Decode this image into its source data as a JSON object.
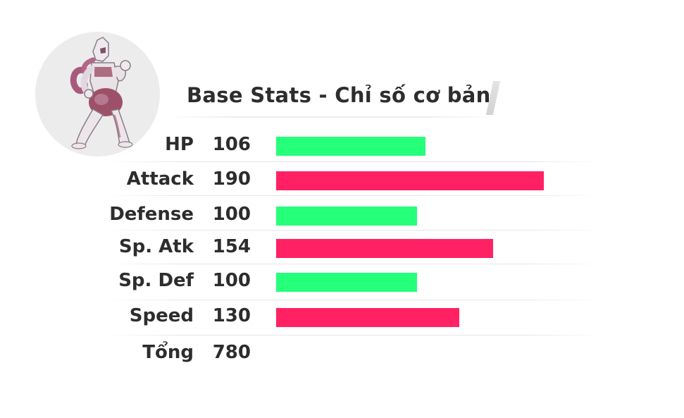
{
  "header": {
    "title": "Base Stats - Chỉ số cơ bản"
  },
  "colors": {
    "bar_green": "#26ff7a",
    "bar_pink": "#ff2163",
    "avatar_bg": "#ececec",
    "text": "#2d2d2d"
  },
  "avatar": {
    "icon": "pokemon-sprite-icon"
  },
  "chart_data": {
    "type": "bar",
    "orientation": "horizontal",
    "categories": [
      "HP",
      "Attack",
      "Defense",
      "Sp. Atk",
      "Sp. Def",
      "Speed"
    ],
    "values": [
      106,
      190,
      100,
      154,
      100,
      130
    ],
    "bar_colors": [
      "#26ff7a",
      "#ff2163",
      "#26ff7a",
      "#ff2163",
      "#26ff7a",
      "#ff2163"
    ],
    "xlim": [
      0,
      190
    ],
    "grid": false,
    "legend": "none",
    "total_label": "Tổng",
    "total_value": 780
  }
}
